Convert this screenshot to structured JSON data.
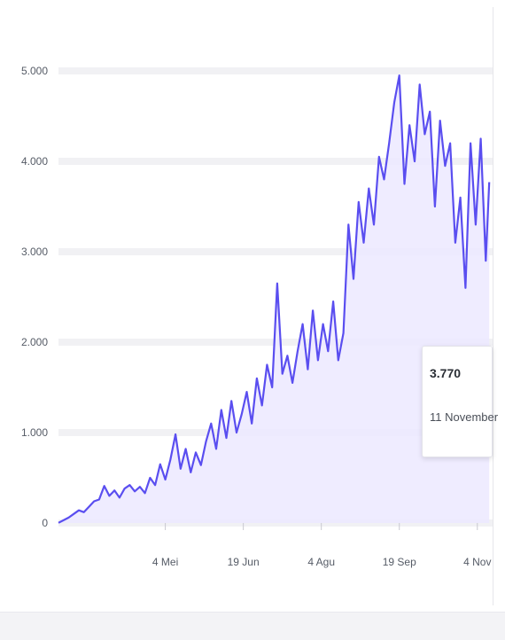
{
  "chart_data": {
    "type": "line",
    "title": "",
    "xlabel": "",
    "ylabel": "",
    "ylim": [
      0,
      5000
    ],
    "yticks": [
      0,
      1000,
      2000,
      3000,
      4000,
      5000
    ],
    "ytick_labels": [
      "0",
      "1.000",
      "2.000",
      "3.000",
      "4.000",
      "5.000"
    ],
    "xlim": [
      "2020-03-02",
      "2020-11-13"
    ],
    "xticks": [
      "2020-05-04",
      "2020-06-19",
      "2020-08-04",
      "2020-09-19",
      "2020-11-04"
    ],
    "xtick_labels": [
      "4 Mei",
      "19 Jun",
      "4 Agu",
      "19 Sep",
      "4 Nov"
    ],
    "grid": true,
    "colors": {
      "line": "#5a4ef0",
      "area": "#ece9ff",
      "grid": "#f1f1f4"
    },
    "series": [
      {
        "x": [
          "2020-03-02",
          "2020-03-05",
          "2020-03-08",
          "2020-03-11",
          "2020-03-14",
          "2020-03-17",
          "2020-03-20",
          "2020-03-23",
          "2020-03-26",
          "2020-03-29",
          "2020-04-01",
          "2020-04-04",
          "2020-04-07",
          "2020-04-10",
          "2020-04-13",
          "2020-04-16",
          "2020-04-19",
          "2020-04-22",
          "2020-04-25",
          "2020-04-28",
          "2020-05-01",
          "2020-05-04",
          "2020-05-07",
          "2020-05-10",
          "2020-05-13",
          "2020-05-16",
          "2020-05-19",
          "2020-05-22",
          "2020-05-25",
          "2020-05-28",
          "2020-05-31",
          "2020-06-03",
          "2020-06-06",
          "2020-06-09",
          "2020-06-12",
          "2020-06-15",
          "2020-06-18",
          "2020-06-21",
          "2020-06-24",
          "2020-06-27",
          "2020-06-30",
          "2020-07-03",
          "2020-07-06",
          "2020-07-09",
          "2020-07-12",
          "2020-07-15",
          "2020-07-18",
          "2020-07-21",
          "2020-07-24",
          "2020-07-27",
          "2020-07-30",
          "2020-08-02",
          "2020-08-05",
          "2020-08-08",
          "2020-08-11",
          "2020-08-14",
          "2020-08-17",
          "2020-08-20",
          "2020-08-23",
          "2020-08-26",
          "2020-08-29",
          "2020-09-01",
          "2020-09-04",
          "2020-09-07",
          "2020-09-10",
          "2020-09-13",
          "2020-09-16",
          "2020-09-19",
          "2020-09-22",
          "2020-09-25",
          "2020-09-28",
          "2020-10-01",
          "2020-10-04",
          "2020-10-07",
          "2020-10-10",
          "2020-10-13",
          "2020-10-16",
          "2020-10-19",
          "2020-10-22",
          "2020-10-25",
          "2020-10-28",
          "2020-10-31",
          "2020-11-03",
          "2020-11-06",
          "2020-11-09",
          "2020-11-11"
        ],
        "values": [
          2,
          30,
          60,
          100,
          140,
          120,
          180,
          240,
          260,
          410,
          300,
          360,
          280,
          380,
          420,
          350,
          400,
          330,
          500,
          420,
          650,
          480,
          700,
          980,
          600,
          820,
          560,
          780,
          640,
          900,
          1100,
          820,
          1250,
          940,
          1350,
          1000,
          1200,
          1450,
          1100,
          1600,
          1300,
          1750,
          1500,
          2650,
          1650,
          1850,
          1550,
          1900,
          2200,
          1700,
          2350,
          1800,
          2200,
          1900,
          2450,
          1800,
          2100,
          3300,
          2700,
          3550,
          3100,
          3700,
          3300,
          4050,
          3800,
          4200,
          4650,
          4950,
          3750,
          4400,
          4000,
          4850,
          4300,
          4550,
          3500,
          4450,
          3950,
          4200,
          3100,
          3600,
          2600,
          4200,
          3300,
          4250,
          2900,
          3770
        ]
      }
    ],
    "tooltip": {
      "value": "3.770",
      "date": "11 November"
    }
  }
}
